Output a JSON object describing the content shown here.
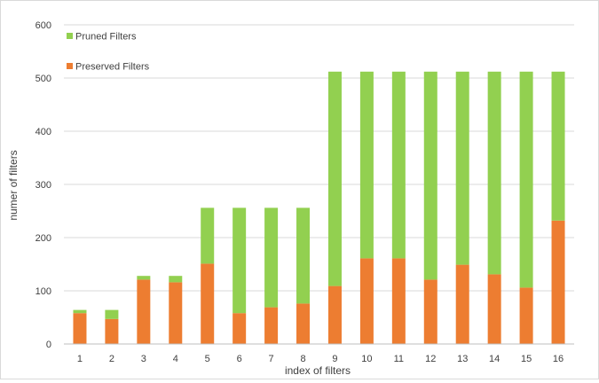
{
  "chart_data": {
    "type": "bar",
    "stacked": true,
    "title": "",
    "xlabel": "index of filters",
    "ylabel": "numer of filters",
    "ylim": [
      0,
      600
    ],
    "yticks": [
      0,
      100,
      200,
      300,
      400,
      500,
      600
    ],
    "grid": true,
    "legend_position": "top-left",
    "categories": [
      "1",
      "2",
      "3",
      "4",
      "5",
      "6",
      "7",
      "8",
      "9",
      "10",
      "11",
      "12",
      "13",
      "14",
      "15",
      "16"
    ],
    "series": [
      {
        "name": "Preserved Filters",
        "color": "#ED7D31",
        "values": [
          58,
          47,
          121,
          116,
          151,
          58,
          69,
          76,
          109,
          161,
          161,
          121,
          149,
          131,
          106,
          232
        ]
      },
      {
        "name": "Pruned Filters",
        "color": "#92D050",
        "values": [
          6,
          17,
          7,
          12,
          105,
          198,
          187,
          180,
          403,
          351,
          351,
          391,
          363,
          381,
          406,
          280
        ]
      }
    ],
    "legend": [
      {
        "name": "Pruned Filters",
        "color": "#92D050"
      },
      {
        "name": "Preserved Filters",
        "color": "#ED7D31"
      }
    ]
  }
}
